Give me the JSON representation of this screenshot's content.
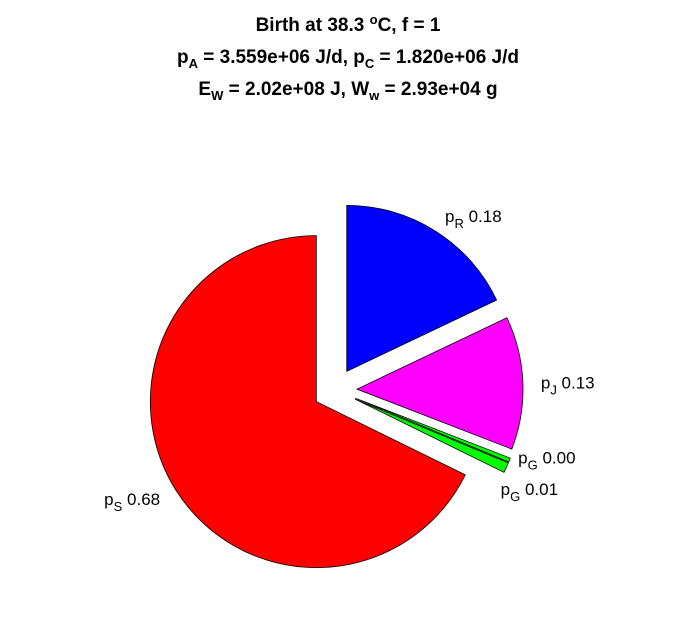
{
  "title": {
    "line1": {
      "text": "Birth at 38.3 ",
      "sup": "o",
      "rest": "C, f = 1"
    },
    "line2": {
      "a_main": "p",
      "a_sub": "A",
      "a_val": " = 3.559e+06 J/d, ",
      "c_main": "p",
      "c_sub": "C",
      "c_val": " = 1.820e+06 J/d"
    },
    "line3": {
      "e_main": "E",
      "e_sub": "W",
      "e_val": " = 2.02e+08 J, ",
      "w_main": "W",
      "w_sub": "w",
      "w_val": " = 2.93e+04 g"
    }
  },
  "chart_data": {
    "type": "pie",
    "explode": true,
    "slices": [
      {
        "main": "p",
        "sub": "R",
        "value": 0.18,
        "label_value": "0.18",
        "color": "#0000ff"
      },
      {
        "main": "p",
        "sub": "J",
        "value": 0.13,
        "label_value": "0.13",
        "color": "#ff00ff"
      },
      {
        "main": "p",
        "sub": "G",
        "value": 0.004,
        "label_value": "0.00",
        "color": "#00ff00"
      },
      {
        "main": "p",
        "sub": "G",
        "value": 0.01,
        "label_value": "0.01",
        "color": "#00ff00"
      },
      {
        "main": "p",
        "sub": "S",
        "value": 0.68,
        "label_value": "0.68",
        "color": "#ff0000"
      }
    ]
  }
}
